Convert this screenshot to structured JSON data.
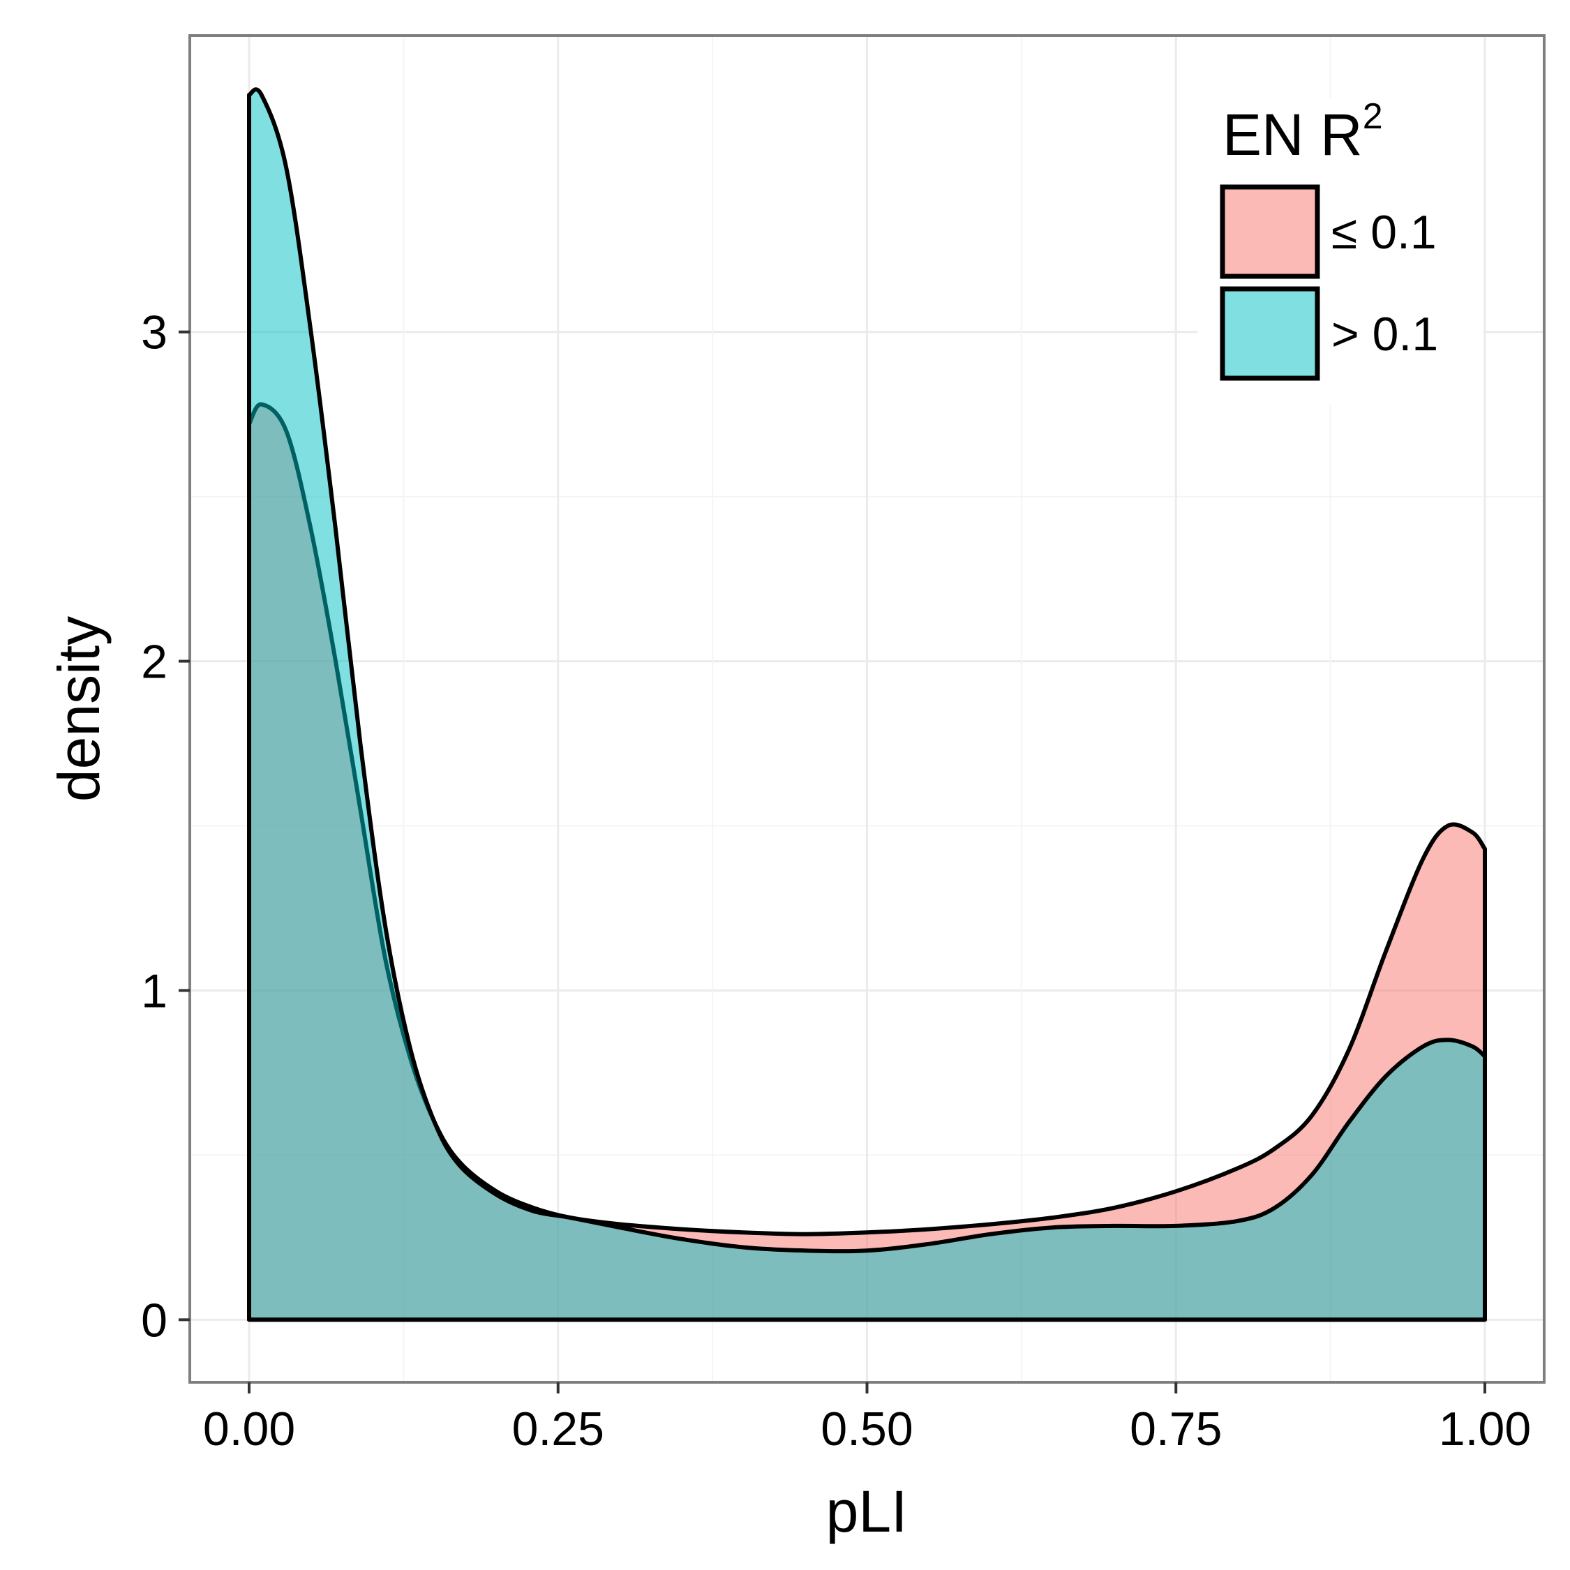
{
  "chart_data": {
    "type": "area",
    "xlabel": "pLI",
    "ylabel": "density",
    "xlim": [
      -0.048,
      1.048
    ],
    "ylim": [
      -0.19,
      3.9
    ],
    "x_ticks": [
      0.0,
      0.25,
      0.5,
      0.75,
      1.0
    ],
    "x_tick_labels": [
      "0.00",
      "0.25",
      "0.50",
      "0.75",
      "1.00"
    ],
    "y_ticks": [
      0,
      1,
      2,
      3
    ],
    "y_tick_labels": [
      "0",
      "1",
      "2",
      "3"
    ],
    "grid": true,
    "legend": {
      "title": "EN R",
      "title_superscript": "2",
      "placement": "top-right",
      "entries": [
        {
          "label": "≤ 0.1",
          "color": "#f8766d"
        },
        {
          "label": "> 0.1",
          "color": "#00bfc4"
        }
      ]
    },
    "series": [
      {
        "name": "≤ 0.1",
        "color": "#f8766d",
        "x": [
          0,
          0.01,
          0.03,
          0.05,
          0.07,
          0.09,
          0.11,
          0.13,
          0.15,
          0.17,
          0.2,
          0.23,
          0.26,
          0.3,
          0.35,
          0.4,
          0.45,
          0.5,
          0.55,
          0.6,
          0.65,
          0.7,
          0.75,
          0.8,
          0.83,
          0.86,
          0.89,
          0.92,
          0.95,
          0.97,
          0.99,
          1.0
        ],
        "y": [
          2.72,
          2.78,
          2.7,
          2.4,
          2.0,
          1.55,
          1.1,
          0.8,
          0.6,
          0.48,
          0.39,
          0.34,
          0.31,
          0.29,
          0.275,
          0.265,
          0.26,
          0.265,
          0.275,
          0.29,
          0.31,
          0.34,
          0.39,
          0.46,
          0.52,
          0.62,
          0.82,
          1.12,
          1.4,
          1.5,
          1.48,
          1.43
        ]
      },
      {
        "name": "> 0.1",
        "color": "#00bfc4",
        "x": [
          0,
          0.01,
          0.03,
          0.05,
          0.07,
          0.09,
          0.11,
          0.13,
          0.15,
          0.17,
          0.2,
          0.23,
          0.26,
          0.3,
          0.35,
          0.4,
          0.45,
          0.5,
          0.55,
          0.6,
          0.65,
          0.7,
          0.75,
          0.8,
          0.83,
          0.86,
          0.89,
          0.92,
          0.95,
          0.97,
          0.99,
          1.0
        ],
        "y": [
          3.72,
          3.72,
          3.5,
          3.0,
          2.4,
          1.75,
          1.2,
          0.83,
          0.6,
          0.47,
          0.38,
          0.33,
          0.31,
          0.28,
          0.245,
          0.22,
          0.21,
          0.21,
          0.23,
          0.26,
          0.28,
          0.285,
          0.285,
          0.3,
          0.34,
          0.44,
          0.6,
          0.74,
          0.83,
          0.85,
          0.83,
          0.8
        ]
      }
    ]
  }
}
